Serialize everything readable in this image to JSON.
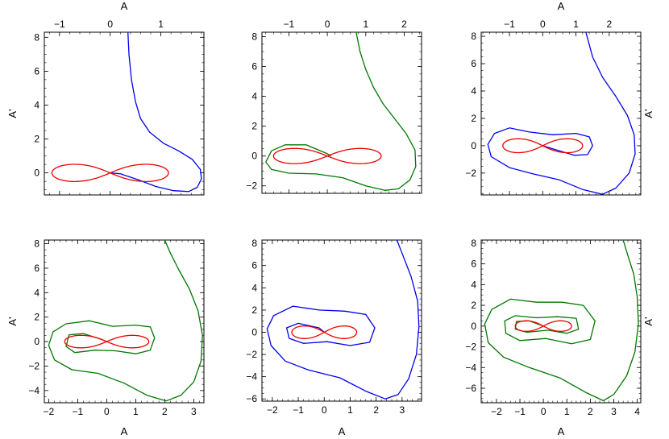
{
  "chart_data": [
    {
      "type": "line",
      "xlabel_top": "A",
      "ylabel": "A'",
      "xlim": [
        -1.3,
        1.85
      ],
      "ylim": [
        -1.3,
        8.3
      ],
      "xticks": [
        -1,
        0,
        1
      ],
      "xtick_labels": [
        "−1",
        "0",
        "1"
      ],
      "yticks": [
        0,
        2,
        4,
        6,
        8
      ],
      "ytick_labels": [
        "0",
        "2",
        "4",
        "6",
        "8"
      ],
      "series": [
        {
          "color": "#0000ee",
          "points": [
            [
              0.35,
              8.3
            ],
            [
              0.37,
              7.0
            ],
            [
              0.42,
              5.5
            ],
            [
              0.5,
              4.2
            ],
            [
              0.6,
              3.2
            ],
            [
              0.78,
              2.4
            ],
            [
              1.05,
              1.75
            ],
            [
              1.35,
              1.3
            ],
            [
              1.62,
              0.8
            ],
            [
              1.78,
              0.2
            ],
            [
              1.8,
              -0.35
            ],
            [
              1.72,
              -0.85
            ],
            [
              1.55,
              -1.1
            ],
            [
              1.25,
              -1.05
            ],
            [
              0.9,
              -0.8
            ],
            [
              0.55,
              -0.4
            ],
            [
              0.2,
              -0.05
            ],
            [
              0,
              0
            ]
          ]
        },
        {
          "color": "#ee0000",
          "lemniscate": {
            "a": 1.15,
            "b": 0.72
          }
        }
      ]
    },
    {
      "type": "line",
      "xlabel_top": "",
      "ylabel": "",
      "xlim": [
        -1.7,
        2.45
      ],
      "ylim": [
        -2.5,
        8.3
      ],
      "xticks": [
        -1,
        0,
        1,
        2
      ],
      "xtick_labels": [
        "−1",
        "0",
        "1",
        "2"
      ],
      "yticks": [
        -2,
        0,
        2,
        4,
        6,
        8
      ],
      "ytick_labels": [
        "−2",
        "0",
        "2",
        "4",
        "6",
        "8"
      ],
      "series": [
        {
          "color": "#007700",
          "points": [
            [
              0.75,
              8.3
            ],
            [
              0.85,
              7.0
            ],
            [
              1.0,
              5.8
            ],
            [
              1.2,
              4.6
            ],
            [
              1.45,
              3.5
            ],
            [
              1.75,
              2.5
            ],
            [
              2.05,
              1.5
            ],
            [
              2.28,
              0.4
            ],
            [
              2.3,
              -0.7
            ],
            [
              2.15,
              -1.6
            ],
            [
              1.85,
              -2.2
            ],
            [
              1.5,
              -2.3
            ],
            [
              1.0,
              -2.0
            ],
            [
              0.4,
              -1.45
            ],
            [
              -0.3,
              -1.2
            ],
            [
              -1.0,
              -1.15
            ],
            [
              -1.45,
              -0.9
            ],
            [
              -1.6,
              -0.4
            ],
            [
              -1.45,
              0.35
            ],
            [
              -1.1,
              0.75
            ],
            [
              -0.55,
              0.75
            ],
            [
              0,
              0.15
            ],
            [
              0.1,
              0.0
            ]
          ]
        },
        {
          "color": "#ee0000",
          "lemniscate": {
            "a": 1.4,
            "b": 0.72
          }
        }
      ]
    },
    {
      "type": "line",
      "xlabel_top": "A",
      "ylabel": "A'",
      "xlim": [
        -1.85,
        2.95
      ],
      "ylim": [
        -3.6,
        8.3
      ],
      "xticks": [
        -1,
        0,
        1,
        2
      ],
      "xtick_labels": [
        "−1",
        "0",
        "1",
        "2"
      ],
      "yticks": [
        -2,
        0,
        2,
        4,
        6,
        8
      ],
      "ytick_labels": [
        "−2",
        "0",
        "2",
        "4",
        "6",
        "8"
      ],
      "series": [
        {
          "color": "#0000ee",
          "points": [
            [
              1.3,
              8.3
            ],
            [
              1.5,
              6.5
            ],
            [
              1.8,
              5.0
            ],
            [
              2.2,
              3.6
            ],
            [
              2.55,
              2.2
            ],
            [
              2.75,
              0.8
            ],
            [
              2.78,
              -0.6
            ],
            [
              2.6,
              -2.0
            ],
            [
              2.2,
              -3.1
            ],
            [
              1.8,
              -3.55
            ],
            [
              1.2,
              -3.2
            ],
            [
              0.5,
              -2.5
            ],
            [
              -0.3,
              -2.05
            ],
            [
              -1.0,
              -1.6
            ],
            [
              -1.55,
              -0.8
            ],
            [
              -1.65,
              0.1
            ],
            [
              -1.45,
              0.9
            ],
            [
              -1.0,
              1.3
            ],
            [
              -0.4,
              1.0
            ],
            [
              0.3,
              0.8
            ],
            [
              1.0,
              0.9
            ],
            [
              1.4,
              0.65
            ],
            [
              1.5,
              0.0
            ],
            [
              1.35,
              -0.65
            ],
            [
              0.95,
              -0.7
            ],
            [
              0.4,
              -0.3
            ],
            [
              0,
              0
            ]
          ]
        },
        {
          "color": "#ee0000",
          "lemniscate": {
            "a": 1.2,
            "b": 0.72
          }
        }
      ]
    },
    {
      "type": "line",
      "xlabel_bottom": "A",
      "ylabel": "A'",
      "xlim": [
        -2.15,
        3.35
      ],
      "ylim": [
        -5.0,
        8.3
      ],
      "xticks": [
        -2,
        -1,
        0,
        1,
        2,
        3
      ],
      "xtick_labels": [
        "−2",
        "−1",
        "0",
        "1",
        "2",
        "3"
      ],
      "yticks": [
        -4,
        -2,
        0,
        2,
        4,
        6,
        8
      ],
      "ytick_labels": [
        "−4",
        "−2",
        "0",
        "2",
        "4",
        "6",
        "8"
      ],
      "series": [
        {
          "color": "#007700",
          "points": [
            [
              2.0,
              8.3
            ],
            [
              2.2,
              7.2
            ],
            [
              2.5,
              5.8
            ],
            [
              2.85,
              4.3
            ],
            [
              3.15,
              2.5
            ],
            [
              3.3,
              0.5
            ],
            [
              3.25,
              -1.6
            ],
            [
              3.0,
              -3.3
            ],
            [
              2.55,
              -4.4
            ],
            [
              2.05,
              -4.85
            ],
            [
              1.4,
              -4.4
            ],
            [
              0.6,
              -3.4
            ],
            [
              -0.3,
              -2.6
            ],
            [
              -1.2,
              -2.3
            ],
            [
              -1.8,
              -1.5
            ],
            [
              -2.0,
              -0.3
            ],
            [
              -1.85,
              0.8
            ],
            [
              -1.4,
              1.45
            ],
            [
              -0.6,
              1.7
            ],
            [
              0.2,
              1.25
            ],
            [
              1.0,
              1.35
            ],
            [
              1.5,
              1.2
            ],
            [
              1.65,
              0.3
            ],
            [
              1.5,
              -0.7
            ],
            [
              1.0,
              -1.0
            ],
            [
              0.3,
              -0.75
            ],
            [
              -0.4,
              -0.7
            ],
            [
              -1.1,
              -0.9
            ],
            [
              -1.4,
              -0.4
            ],
            [
              -1.3,
              0.55
            ],
            [
              -0.8,
              0.65
            ],
            [
              -0.2,
              0.2
            ],
            [
              0,
              0
            ]
          ]
        },
        {
          "color": "#ee0000",
          "lemniscate": {
            "a": 1.45,
            "b": 0.72
          }
        }
      ]
    },
    {
      "type": "line",
      "xlabel_bottom": "A",
      "ylabel": "",
      "xlim": [
        -2.4,
        3.75
      ],
      "ylim": [
        -6.2,
        8.3
      ],
      "xticks": [
        -2,
        -1,
        0,
        1,
        2,
        3
      ],
      "xtick_labels": [
        "−2",
        "−1",
        "0",
        "1",
        "2",
        "3"
      ],
      "yticks": [
        -6,
        -4,
        -2,
        0,
        2,
        4,
        6,
        8
      ],
      "ytick_labels": [
        "−6",
        "−4",
        "−2",
        "0",
        "2",
        "4",
        "6",
        "8"
      ],
      "series": [
        {
          "color": "#0000ee",
          "points": [
            [
              2.8,
              8.3
            ],
            [
              3.05,
              6.8
            ],
            [
              3.35,
              5.0
            ],
            [
              3.6,
              2.8
            ],
            [
              3.65,
              0.5
            ],
            [
              3.55,
              -2.0
            ],
            [
              3.25,
              -4.2
            ],
            [
              2.85,
              -5.6
            ],
            [
              2.35,
              -6.0
            ],
            [
              1.6,
              -5.3
            ],
            [
              0.6,
              -4.1
            ],
            [
              -0.6,
              -3.4
            ],
            [
              -1.5,
              -2.6
            ],
            [
              -2.05,
              -1.2
            ],
            [
              -2.2,
              0.3
            ],
            [
              -1.95,
              1.5
            ],
            [
              -1.2,
              2.35
            ],
            [
              -0.2,
              2.0
            ],
            [
              0.8,
              1.9
            ],
            [
              1.6,
              1.6
            ],
            [
              1.95,
              0.4
            ],
            [
              1.75,
              -0.9
            ],
            [
              1.0,
              -1.2
            ],
            [
              0.1,
              -0.85
            ],
            [
              -0.8,
              -1.0
            ],
            [
              -1.35,
              -0.55
            ],
            [
              -1.45,
              0.4
            ],
            [
              -1.0,
              0.8
            ],
            [
              -0.2,
              0.4
            ],
            [
              0,
              0
            ]
          ]
        },
        {
          "color": "#ee0000",
          "lemniscate": {
            "a": 1.25,
            "b": 0.8
          }
        }
      ]
    },
    {
      "type": "line",
      "xlabel_bottom": "A",
      "ylabel": "A'",
      "xlim": [
        -2.65,
        4.15
      ],
      "ylim": [
        -7.4,
        8.3
      ],
      "xticks": [
        -2,
        -1,
        0,
        1,
        2,
        3,
        4
      ],
      "xtick_labels": [
        "−2",
        "−1",
        "0",
        "1",
        "2",
        "3",
        "4"
      ],
      "yticks": [
        -6,
        -4,
        -2,
        0,
        2,
        4,
        6,
        8
      ],
      "ytick_labels": [
        "−6",
        "−4",
        "−2",
        "0",
        "2",
        "4",
        "6",
        "8"
      ],
      "series": [
        {
          "color": "#007700",
          "points": [
            [
              3.4,
              8.3
            ],
            [
              3.6,
              6.8
            ],
            [
              3.85,
              5.0
            ],
            [
              4.0,
              2.8
            ],
            [
              4.05,
              0.2
            ],
            [
              3.9,
              -2.5
            ],
            [
              3.55,
              -4.8
            ],
            [
              3.0,
              -6.6
            ],
            [
              2.55,
              -7.2
            ],
            [
              1.8,
              -6.4
            ],
            [
              0.7,
              -5.0
            ],
            [
              -0.6,
              -4.0
            ],
            [
              -1.7,
              -3.0
            ],
            [
              -2.35,
              -1.6
            ],
            [
              -2.5,
              0.2
            ],
            [
              -2.2,
              1.6
            ],
            [
              -1.4,
              2.6
            ],
            [
              -0.3,
              2.3
            ],
            [
              0.8,
              2.3
            ],
            [
              1.7,
              2.0
            ],
            [
              2.2,
              0.5
            ],
            [
              2.0,
              -1.3
            ],
            [
              1.2,
              -1.7
            ],
            [
              0.1,
              -1.2
            ],
            [
              -1.0,
              -1.4
            ],
            [
              -1.6,
              -0.7
            ],
            [
              -1.65,
              0.5
            ],
            [
              -1.2,
              1.0
            ],
            [
              -0.3,
              0.8
            ],
            [
              0.6,
              0.9
            ],
            [
              1.4,
              0.75
            ],
            [
              1.5,
              -0.3
            ],
            [
              1.0,
              -0.7
            ],
            [
              0.2,
              -0.4
            ],
            [
              -0.7,
              -0.6
            ],
            [
              -1.2,
              -0.3
            ],
            [
              -1.15,
              0.45
            ],
            [
              -0.6,
              0.5
            ],
            [
              0,
              0
            ]
          ]
        },
        {
          "color": "#ee0000",
          "lemniscate": {
            "a": 1.2,
            "b": 0.72
          }
        }
      ]
    }
  ]
}
